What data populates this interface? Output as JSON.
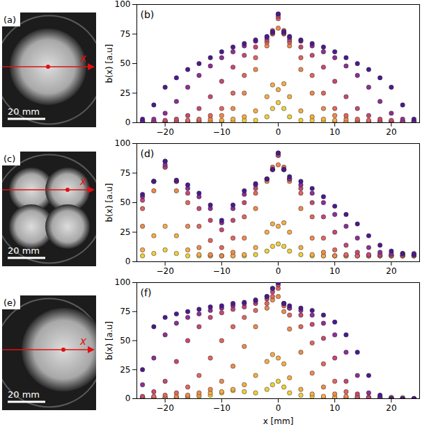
{
  "chart_data": [
    {
      "type": "scatter",
      "title": "(b)",
      "ylabel": "b(x) [a.u]",
      "marker": "circle",
      "x": [
        -24,
        -22,
        -20,
        -18,
        -16,
        -14,
        -12,
        -10,
        -8,
        -6,
        -4,
        -2,
        -1,
        0,
        1,
        2,
        4,
        6,
        8,
        10,
        12,
        14,
        16,
        18,
        20,
        22,
        24
      ],
      "xlim": [
        -25,
        25
      ],
      "xticks": [
        {
          "value": -20,
          "label": "−20"
        },
        {
          "value": -10,
          "label": "−10"
        },
        0,
        10,
        20
      ],
      "ylim": [
        0,
        100
      ],
      "yticks": [
        0,
        25,
        50,
        75,
        100
      ],
      "series": [
        {
          "color": "#f0cf3c",
          "values": [
            1,
            1,
            1,
            1,
            1,
            1,
            1,
            1,
            1,
            2,
            2,
            5,
            12,
            17,
            12,
            5,
            2,
            2,
            1,
            1,
            1,
            1,
            1,
            1,
            1,
            1,
            1
          ]
        },
        {
          "color": "#f6ac48",
          "values": [
            1,
            1,
            1,
            1,
            1,
            1,
            1,
            2,
            3,
            5,
            10,
            22,
            32,
            28,
            33,
            22,
            10,
            5,
            3,
            2,
            1,
            1,
            1,
            1,
            1,
            1,
            1
          ]
        },
        {
          "color": "#ef8a4e",
          "values": [
            1,
            1,
            1,
            1,
            1,
            2,
            3,
            6,
            12,
            25,
            45,
            65,
            75,
            80,
            75,
            65,
            45,
            25,
            12,
            6,
            3,
            2,
            1,
            1,
            1,
            1,
            1
          ]
        },
        {
          "color": "#e0675f",
          "values": [
            1,
            1,
            1,
            1,
            2,
            3,
            6,
            12,
            25,
            40,
            55,
            68,
            78,
            88,
            78,
            68,
            55,
            40,
            25,
            12,
            6,
            3,
            2,
            1,
            1,
            1,
            1
          ]
        },
        {
          "color": "#c54973",
          "values": [
            1,
            1,
            2,
            3,
            6,
            12,
            22,
            35,
            47,
            57,
            64,
            70,
            76,
            90,
            76,
            70,
            64,
            57,
            47,
            35,
            22,
            12,
            6,
            3,
            2,
            1,
            1
          ]
        },
        {
          "color": "#8e2f96",
          "values": [
            1,
            3,
            8,
            18,
            30,
            40,
            48,
            55,
            60,
            65,
            69,
            72,
            76,
            92,
            76,
            72,
            69,
            65,
            60,
            55,
            48,
            40,
            30,
            18,
            8,
            3,
            1
          ]
        },
        {
          "color": "#4a1a8f",
          "values": [
            3,
            15,
            30,
            38,
            45,
            50,
            55,
            60,
            64,
            67,
            70,
            73,
            77,
            92,
            77,
            73,
            70,
            67,
            64,
            60,
            55,
            50,
            45,
            38,
            30,
            15,
            3
          ]
        }
      ]
    },
    {
      "type": "scatter",
      "title": "(d)",
      "ylabel": "b(x) [a.u]",
      "marker": "circle",
      "x": [
        -24,
        -22,
        -20,
        -18,
        -16,
        -14,
        -12,
        -10,
        -8,
        -6,
        -4,
        -2,
        -1,
        0,
        1,
        2,
        4,
        6,
        8,
        10,
        12,
        14,
        16,
        18,
        20,
        22,
        24
      ],
      "xlim": [
        -25,
        25
      ],
      "xticks": [
        {
          "value": -20,
          "label": "−20"
        },
        {
          "value": -10,
          "label": "−10"
        },
        0,
        10,
        20
      ],
      "ylim": [
        0,
        100
      ],
      "yticks": [
        0,
        25,
        50,
        75,
        100
      ],
      "series": [
        {
          "color": "#f0cf3c",
          "values": [
            5,
            7,
            10,
            7,
            5,
            5,
            5,
            5,
            5,
            5,
            6,
            9,
            13,
            15,
            13,
            9,
            6,
            5,
            5,
            5,
            5,
            5,
            5,
            5,
            5,
            5,
            5
          ]
        },
        {
          "color": "#f6ac48",
          "values": [
            10,
            22,
            30,
            22,
            10,
            6,
            5,
            5,
            5,
            6,
            12,
            25,
            32,
            30,
            33,
            25,
            12,
            6,
            5,
            5,
            5,
            5,
            5,
            5,
            5,
            5,
            5
          ]
        },
        {
          "color": "#ef8a4e",
          "values": [
            30,
            60,
            80,
            60,
            30,
            12,
            6,
            5,
            8,
            20,
            45,
            68,
            78,
            82,
            78,
            68,
            45,
            20,
            8,
            5,
            5,
            5,
            5,
            5,
            5,
            5,
            5
          ]
        },
        {
          "color": "#e0675f",
          "values": [
            45,
            68,
            85,
            68,
            50,
            30,
            18,
            12,
            20,
            38,
            58,
            70,
            80,
            90,
            80,
            70,
            58,
            38,
            20,
            10,
            6,
            5,
            5,
            5,
            5,
            5,
            5
          ]
        },
        {
          "color": "#c54973",
          "values": [
            52,
            68,
            80,
            68,
            58,
            45,
            35,
            27,
            35,
            50,
            62,
            70,
            78,
            90,
            78,
            70,
            62,
            50,
            38,
            25,
            14,
            8,
            6,
            6,
            6,
            6,
            6
          ]
        },
        {
          "color": "#8e2f96",
          "values": [
            55,
            68,
            82,
            68,
            62,
            55,
            45,
            33,
            45,
            57,
            65,
            70,
            78,
            92,
            78,
            70,
            65,
            58,
            50,
            40,
            30,
            20,
            12,
            8,
            7,
            7,
            7
          ]
        },
        {
          "color": "#4a1a8f",
          "values": [
            57,
            68,
            85,
            69,
            65,
            58,
            48,
            35,
            48,
            60,
            66,
            70,
            78,
            92,
            78,
            72,
            68,
            62,
            55,
            47,
            40,
            32,
            22,
            14,
            9,
            7,
            6
          ]
        }
      ]
    },
    {
      "type": "scatter",
      "title": "(f)",
      "xlabel": "x [mm]",
      "ylabel": "b(x) [a.u]",
      "marker": "circle",
      "x": [
        -24,
        -22,
        -20,
        -18,
        -16,
        -14,
        -12,
        -10,
        -8,
        -6,
        -4,
        -2,
        -1,
        0,
        1,
        2,
        4,
        6,
        8,
        10,
        12,
        14,
        16,
        18,
        20,
        22,
        24
      ],
      "xlim": [
        -25,
        25
      ],
      "xticks": [
        {
          "value": -20,
          "label": "−20"
        },
        {
          "value": -10,
          "label": "−10"
        },
        0,
        10,
        20
      ],
      "ylim": [
        0,
        100
      ],
      "yticks": [
        0,
        25,
        50,
        75,
        100
      ],
      "series": [
        {
          "color": "#f0cf3c",
          "values": [
            1,
            1,
            1,
            1,
            1,
            2,
            3,
            5,
            7,
            6,
            5,
            8,
            12,
            15,
            10,
            5,
            3,
            2,
            1,
            1,
            1,
            1,
            1,
            1,
            1,
            1,
            0
          ]
        },
        {
          "color": "#f6ac48",
          "values": [
            1,
            1,
            1,
            1,
            2,
            3,
            5,
            6,
            8,
            12,
            20,
            32,
            38,
            35,
            30,
            18,
            8,
            4,
            2,
            1,
            1,
            1,
            1,
            1,
            1,
            0,
            0
          ]
        },
        {
          "color": "#ef8a4e",
          "values": [
            1,
            1,
            1,
            2,
            3,
            5,
            8,
            15,
            28,
            45,
            62,
            78,
            85,
            88,
            75,
            60,
            40,
            22,
            10,
            4,
            2,
            1,
            1,
            1,
            1,
            0,
            0
          ]
        },
        {
          "color": "#e0675f",
          "values": [
            1,
            2,
            3,
            5,
            10,
            20,
            35,
            50,
            62,
            70,
            76,
            82,
            88,
            95,
            80,
            72,
            62,
            48,
            30,
            15,
            6,
            2,
            1,
            1,
            0,
            0,
            0
          ]
        },
        {
          "color": "#c54973",
          "values": [
            2,
            6,
            15,
            32,
            50,
            62,
            70,
            74,
            77,
            79,
            82,
            86,
            92,
            98,
            82,
            78,
            72,
            64,
            52,
            35,
            15,
            4,
            1,
            0,
            0,
            0,
            0
          ]
        },
        {
          "color": "#8e2f96",
          "values": [
            12,
            35,
            55,
            65,
            70,
            73,
            76,
            78,
            80,
            82,
            84,
            88,
            95,
            100,
            82,
            78,
            76,
            72,
            65,
            55,
            40,
            20,
            5,
            1,
            0,
            0,
            0
          ]
        },
        {
          "color": "#4a1a8f",
          "values": [
            25,
            62,
            70,
            73,
            75,
            77,
            79,
            80,
            82,
            83,
            85,
            88,
            95,
            100,
            82,
            80,
            78,
            76,
            72,
            66,
            55,
            40,
            20,
            3,
            0,
            0,
            0
          ]
        }
      ]
    }
  ],
  "images": [
    {
      "label": "(a)",
      "arrow_label": "x",
      "scale_bar": "20 mm"
    },
    {
      "label": "(c)",
      "arrow_label": "x",
      "scale_bar": "20 mm"
    },
    {
      "label": "(e)",
      "arrow_label": "x",
      "scale_bar": "20 mm"
    }
  ]
}
